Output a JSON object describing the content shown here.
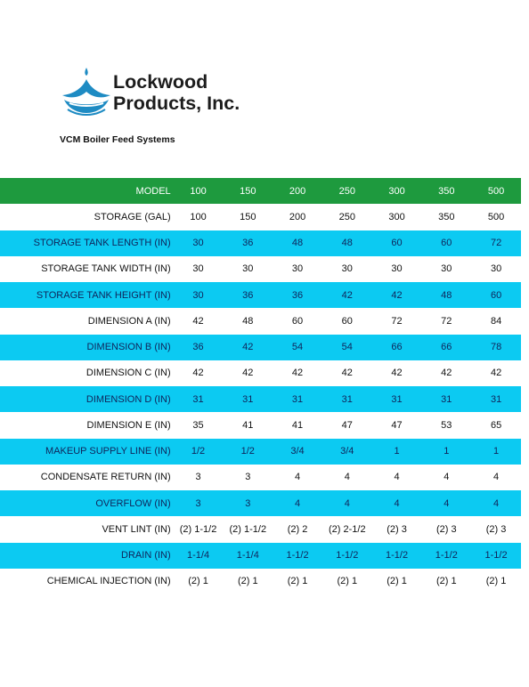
{
  "header": {
    "company_line1": "Lockwood",
    "company_line2": "Products, Inc.",
    "logo_icon": "water-drop-splash-icon",
    "brand_color": "#1e8bc3"
  },
  "document": {
    "subtitle": "VCM Boiler Feed Systems"
  },
  "colors": {
    "header_row": "#1e9a3e",
    "highlight_row": "#0ccaf2"
  },
  "table": {
    "header": {
      "label": "MODEL",
      "values": [
        "100",
        "150",
        "200",
        "250",
        "300",
        "350",
        "500"
      ]
    },
    "rows": [
      {
        "label": "STORAGE (GAL)",
        "values": [
          "100",
          "150",
          "200",
          "250",
          "300",
          "350",
          "500"
        ],
        "style": "white"
      },
      {
        "label": "STORAGE TANK LENGTH (IN)",
        "values": [
          "30",
          "36",
          "48",
          "48",
          "60",
          "60",
          "72"
        ],
        "style": "cyan"
      },
      {
        "label": "STORAGE TANK WIDTH (IN)",
        "values": [
          "30",
          "30",
          "30",
          "30",
          "30",
          "30",
          "30"
        ],
        "style": "white"
      },
      {
        "label": "STORAGE TANK HEIGHT (IN)",
        "values": [
          "30",
          "36",
          "36",
          "42",
          "42",
          "48",
          "60"
        ],
        "style": "cyan"
      },
      {
        "label": "DIMENSION A (IN)",
        "values": [
          "42",
          "48",
          "60",
          "60",
          "72",
          "72",
          "84"
        ],
        "style": "white"
      },
      {
        "label": "DIMENSION B (IN)",
        "values": [
          "36",
          "42",
          "54",
          "54",
          "66",
          "66",
          "78"
        ],
        "style": "cyan"
      },
      {
        "label": "DIMENSION C (IN)",
        "values": [
          "42",
          "42",
          "42",
          "42",
          "42",
          "42",
          "42"
        ],
        "style": "white"
      },
      {
        "label": "DIMENSION D (IN)",
        "values": [
          "31",
          "31",
          "31",
          "31",
          "31",
          "31",
          "31"
        ],
        "style": "cyan"
      },
      {
        "label": "DIMENSION E (IN)",
        "values": [
          "35",
          "41",
          "41",
          "47",
          "47",
          "53",
          "65"
        ],
        "style": "white"
      },
      {
        "label": "MAKEUP SUPPLY LINE (IN)",
        "values": [
          "1/2",
          "1/2",
          "3/4",
          "3/4",
          "1",
          "1",
          "1"
        ],
        "style": "cyan"
      },
      {
        "label": "CONDENSATE RETURN (IN)",
        "values": [
          "3",
          "3",
          "4",
          "4",
          "4",
          "4",
          "4"
        ],
        "style": "white"
      },
      {
        "label": "OVERFLOW (IN)",
        "values": [
          "3",
          "3",
          "4",
          "4",
          "4",
          "4",
          "4"
        ],
        "style": "cyan"
      },
      {
        "label": "VENT LINT (IN)",
        "values": [
          "(2) 1-1/2",
          "(2) 1-1/2",
          "(2) 2",
          "(2) 2-1/2",
          "(2) 3",
          "(2) 3",
          "(2) 3"
        ],
        "style": "white"
      },
      {
        "label": "DRAIN (IN)",
        "values": [
          "1-1/4",
          "1-1/4",
          "1-1/2",
          "1-1/2",
          "1-1/2",
          "1-1/2",
          "1-1/2"
        ],
        "style": "cyan"
      },
      {
        "label": "CHEMICAL INJECTION (IN)",
        "values": [
          "(2) 1",
          "(2) 1",
          "(2) 1",
          "(2) 1",
          "(2) 1",
          "(2) 1",
          "(2) 1"
        ],
        "style": "white"
      }
    ]
  }
}
